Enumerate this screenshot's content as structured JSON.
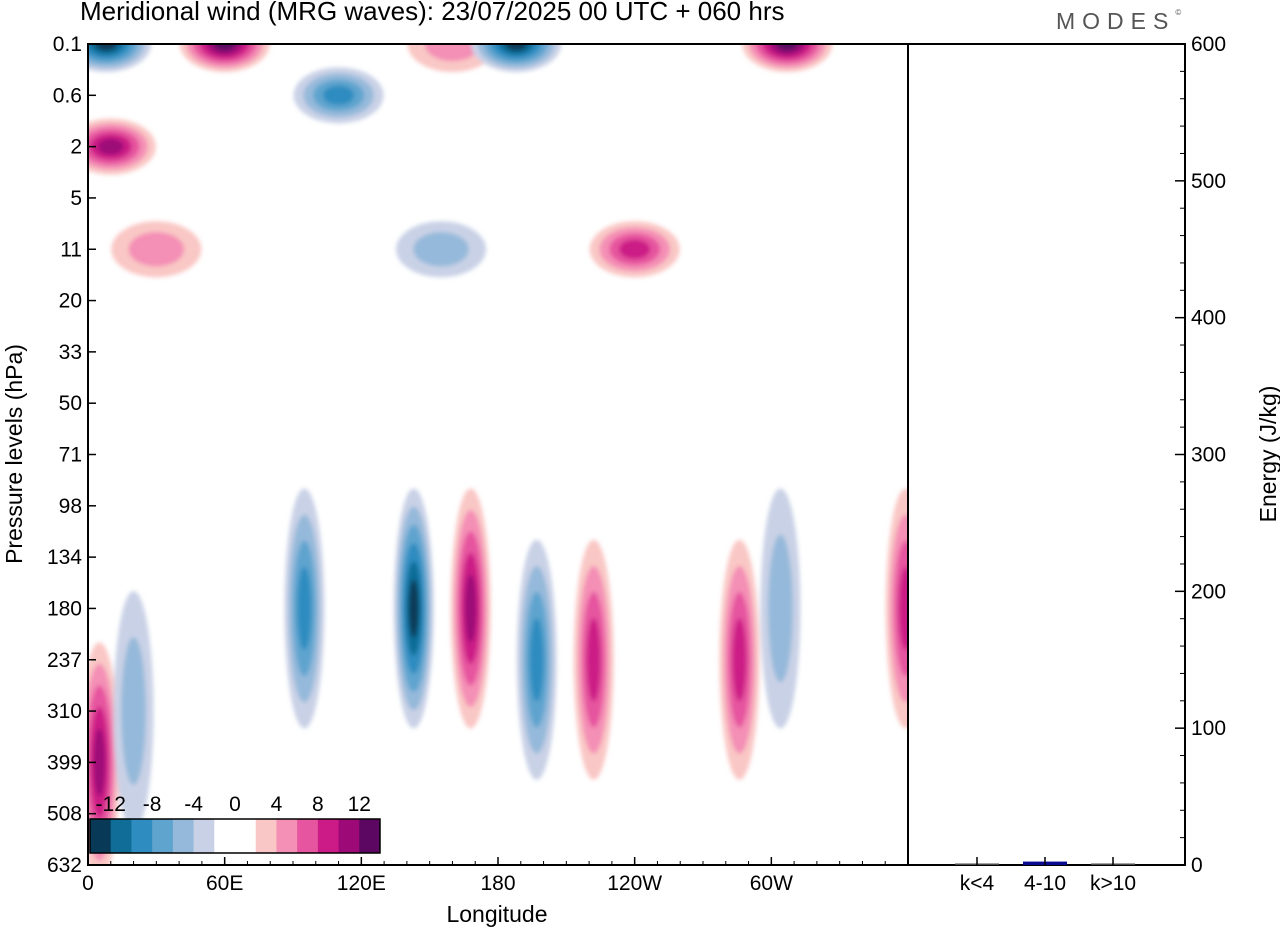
{
  "title": "Meridional wind (MRG waves):  23/07/2025  00 UTC  + 060 hrs",
  "logo": "MODES",
  "colors": {
    "neg": [
      "#083a57",
      "#0f6d98",
      "#2f8cc0",
      "#5ea4cf",
      "#95b9da",
      "#c9d1e6"
    ],
    "pos": [
      "#f9c7c5",
      "#f48fb5",
      "#e6559f",
      "#cc1a86",
      "#9d0a78",
      "#5c0862"
    ]
  },
  "chart_data": [
    {
      "type": "heatmap",
      "description_field": "Meridional wind (MRG waves)",
      "xlabel": "Longitude",
      "ylabel": "Pressure levels (hPa)",
      "x_ticks": [
        "0",
        "60E",
        "120E",
        "180",
        "120W",
        "60W"
      ],
      "y_ticks": [
        "0.1",
        "0.6",
        "2",
        "5",
        "11",
        "20",
        "33",
        "50",
        "71",
        "98",
        "134",
        "180",
        "237",
        "310",
        "399",
        "508",
        "632"
      ],
      "colorbar_labels": [
        "-12",
        "-8",
        "-4",
        "0",
        "4",
        "8",
        "12"
      ],
      "features": [
        {
          "lon": 8,
          "lev": "0.1",
          "value": -14,
          "name": "upper-neg-0E"
        },
        {
          "lon": 60,
          "lev": "0.1",
          "value": 14,
          "name": "upper-pos-60E"
        },
        {
          "lon": 10,
          "lev": "2",
          "value": 12,
          "name": "upper-pos-10E"
        },
        {
          "lon": 110,
          "lev": "0.6",
          "value": -10,
          "name": "upper-neg-110E"
        },
        {
          "lon": 160,
          "lev": "0.1",
          "value": 6,
          "name": "upper-pos-160E"
        },
        {
          "lon": 188,
          "lev": "0.1",
          "value": -14,
          "name": "upper-neg-170W"
        },
        {
          "lon": 307,
          "lev": "0.1",
          "value": 14,
          "name": "upper-pos-50W"
        },
        {
          "lon": 240,
          "lev": "11",
          "value": 10,
          "name": "mid-pos-120W"
        },
        {
          "lon": 155,
          "lev": "11",
          "value": -5,
          "name": "mid-neg-155E"
        },
        {
          "lon": 30,
          "lev": "11",
          "value": 6,
          "name": "mid-pos-30E"
        },
        {
          "lon": 5,
          "lev": "399",
          "value": 12,
          "name": "low-pos-5E"
        },
        {
          "lon": 20,
          "lev": "310",
          "value": -6,
          "name": "low-neg-20E"
        },
        {
          "lon": 95,
          "lev": "180",
          "value": -9,
          "name": "low-neg-95E"
        },
        {
          "lon": 143,
          "lev": "180",
          "value": -14,
          "name": "low-neg-143E"
        },
        {
          "lon": 168,
          "lev": "180",
          "value": 12,
          "name": "low-pos-168E"
        },
        {
          "lon": 197,
          "lev": "237",
          "value": -9,
          "name": "low-neg-163W"
        },
        {
          "lon": 222,
          "lev": "237",
          "value": 10,
          "name": "low-pos-138W"
        },
        {
          "lon": 286,
          "lev": "237",
          "value": 11,
          "name": "low-pos-74W"
        },
        {
          "lon": 304,
          "lev": "180",
          "value": -6,
          "name": "low-neg-56W"
        },
        {
          "lon": 359,
          "lev": "180",
          "value": 10,
          "name": "low-pos-1W"
        }
      ]
    },
    {
      "type": "bar",
      "categories": [
        "k<4",
        "4-10",
        "k>10"
      ],
      "values": [
        1,
        2.5,
        0.5
      ],
      "ylabel": "Energy (J/kg)",
      "ylim": [
        0,
        600
      ],
      "y_ticks": [
        "0",
        "100",
        "200",
        "300",
        "400",
        "500",
        "600"
      ]
    }
  ]
}
